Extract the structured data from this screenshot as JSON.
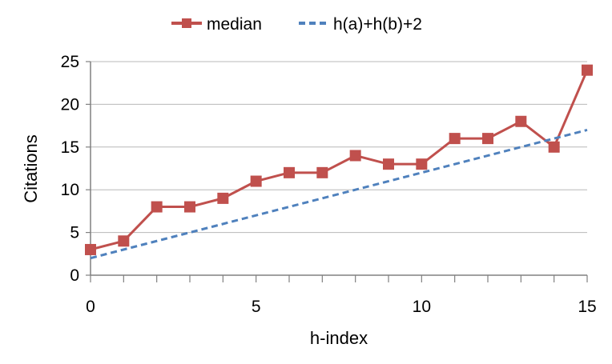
{
  "chart_data": {
    "type": "line",
    "title": "",
    "xlabel": "h-index",
    "ylabel": "Citations",
    "xlim": [
      0,
      15
    ],
    "ylim": [
      0,
      25
    ],
    "x_ticks": [
      0,
      5,
      10,
      15
    ],
    "y_ticks": [
      0,
      5,
      10,
      15,
      20,
      25
    ],
    "x_minor_ticks": [
      0,
      1,
      2,
      3,
      4,
      5,
      6,
      7,
      8,
      9,
      10,
      11,
      12,
      13,
      14,
      15
    ],
    "grid": "horizontal",
    "legend_position": "top-center",
    "series": [
      {
        "name": "median",
        "style": "solid-line-square-markers",
        "color": "#c0504d",
        "x": [
          0,
          1,
          2,
          3,
          4,
          5,
          6,
          7,
          8,
          9,
          10,
          11,
          12,
          13,
          14,
          15
        ],
        "y": [
          3,
          4,
          8,
          8,
          9,
          11,
          12,
          12,
          14,
          13,
          13,
          16,
          16,
          18,
          15,
          24
        ]
      },
      {
        "name": "h(a)+h(b)+2",
        "style": "dashed-line",
        "color": "#4f81bd",
        "x": [
          0,
          15
        ],
        "y": [
          2,
          17
        ]
      }
    ]
  }
}
